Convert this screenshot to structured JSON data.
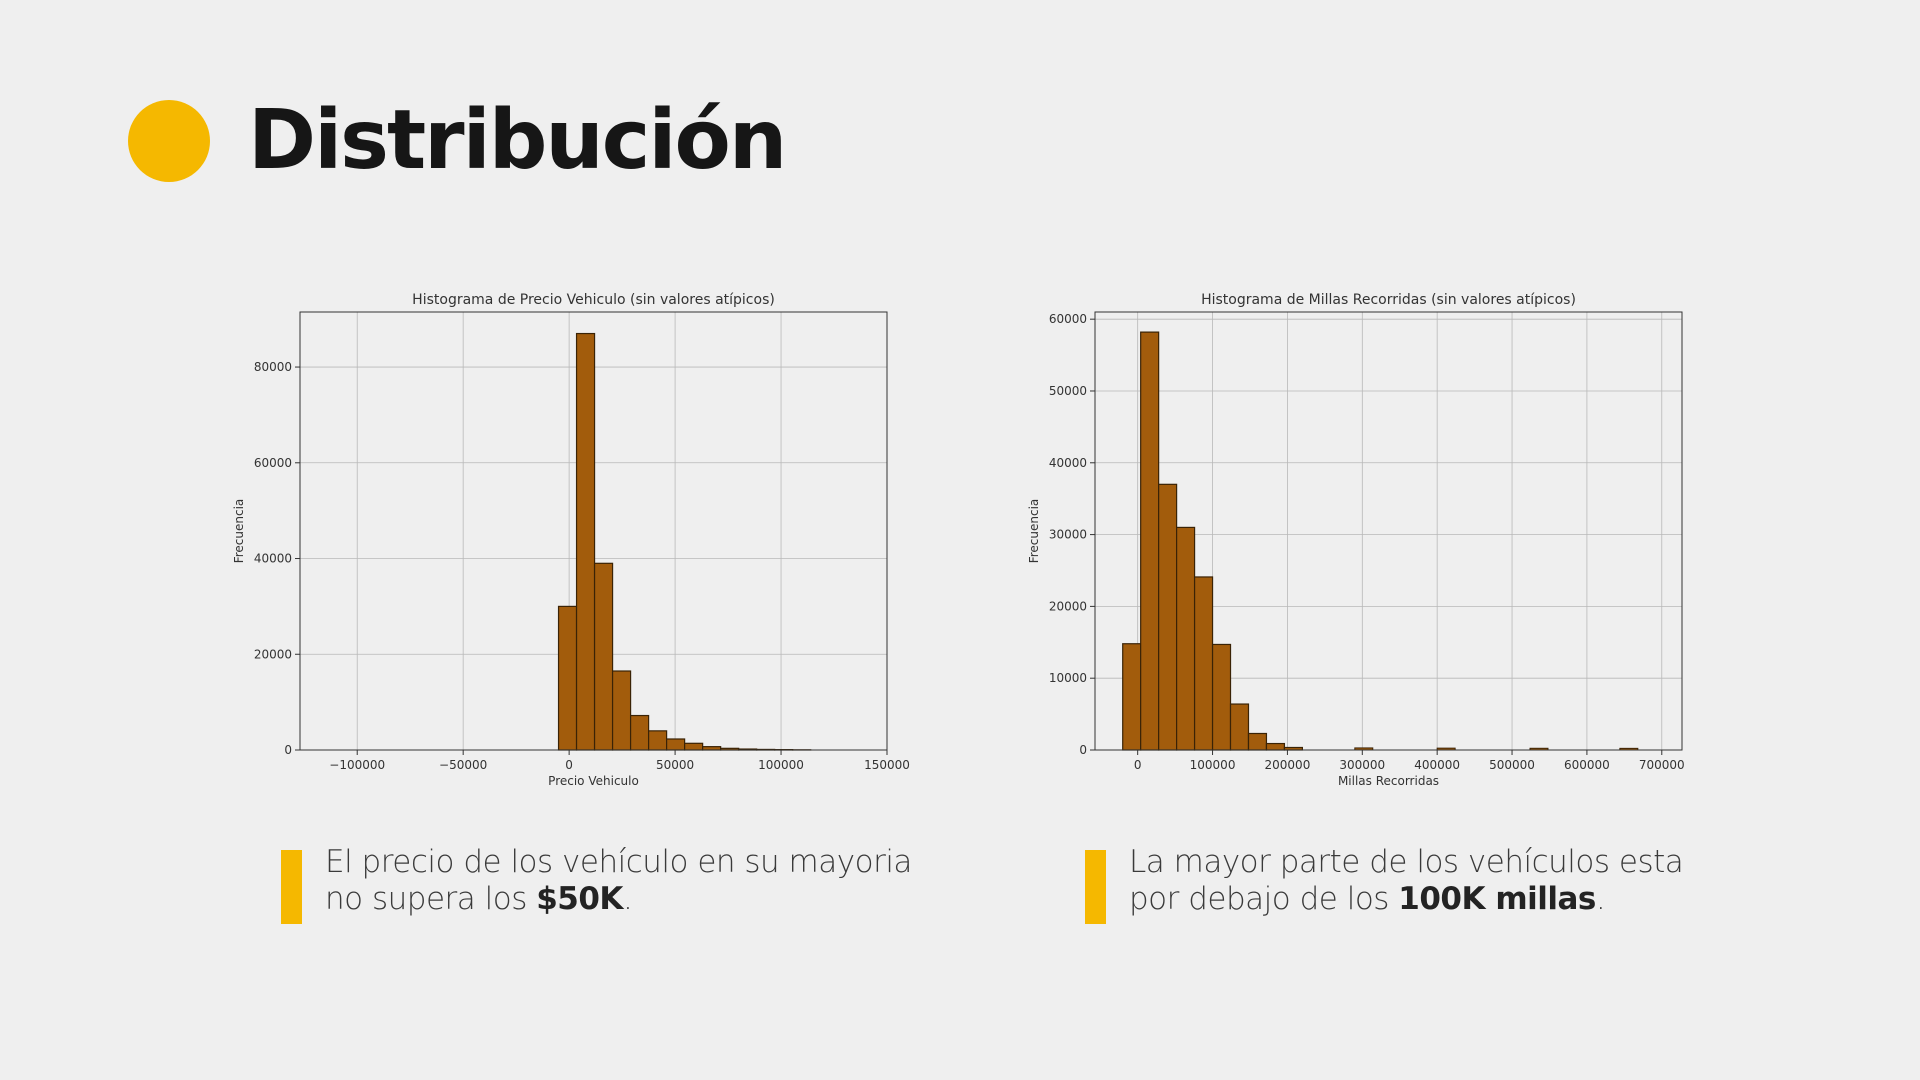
{
  "slide": {
    "title": "Distribución"
  },
  "captions": {
    "left": {
      "text": "El precio de los vehículo en su mayoria no supera los ",
      "bold": "$50K",
      "end": "."
    },
    "right": {
      "text": "La mayor parte de los vehículos esta por debajo de los ",
      "bold": "100K millas",
      "end": "."
    }
  },
  "colors": {
    "accent": "#f5b800",
    "bar_fill": "#a25c0c",
    "bar_edge": "#3a2306"
  },
  "chart_data": [
    {
      "type": "bar",
      "title": "Histograma de Precio Vehiculo (sin valores atípicos)",
      "xlabel": "Precio Vehiculo",
      "ylabel": "Frecuencia",
      "xlim": [
        -127000,
        150000
      ],
      "ylim": [
        0,
        91500
      ],
      "xticks": [
        -100000,
        -50000,
        0,
        50000,
        100000,
        150000
      ],
      "xtick_labels": [
        "−100000",
        "−50000",
        "0",
        "50000",
        "100000",
        "150000"
      ],
      "yticks": [
        0,
        20000,
        40000,
        60000,
        80000
      ],
      "ytick_labels": [
        "0",
        "20000",
        "40000",
        "60000",
        "80000"
      ],
      "grid": true,
      "bin_edges": [
        -5000,
        3500,
        12000,
        20500,
        29000,
        37500,
        46000,
        54500,
        63000,
        71500,
        80000,
        88500,
        97000,
        105500,
        114000
      ],
      "values": [
        30000,
        87000,
        39000,
        16500,
        7200,
        4000,
        2300,
        1400,
        700,
        350,
        200,
        120,
        80,
        40
      ]
    },
    {
      "type": "bar",
      "title": "Histograma de Millas Recorridas (sin valores atípicos)",
      "xlabel": "Millas Recorridas",
      "ylabel": "Frecuencia",
      "xlim": [
        -57000,
        727000
      ],
      "ylim": [
        0,
        61000
      ],
      "xticks": [
        0,
        100000,
        200000,
        300000,
        400000,
        500000,
        600000,
        700000
      ],
      "xtick_labels": [
        "0",
        "100000",
        "200000",
        "300000",
        "400000",
        "500000",
        "600000",
        "700000"
      ],
      "yticks": [
        0,
        10000,
        20000,
        30000,
        40000,
        50000,
        60000
      ],
      "ytick_labels": [
        "0",
        "10000",
        "20000",
        "30000",
        "40000",
        "50000",
        "60000"
      ],
      "grid": true,
      "bin_edges": [
        -20000,
        4000,
        28000,
        52000,
        76000,
        100000,
        124000,
        148000,
        172000,
        196000,
        220000
      ],
      "values": [
        14800,
        58200,
        37000,
        31000,
        24100,
        14700,
        6400,
        2300,
        900,
        350
      ],
      "outliers": [
        {
          "x": 290000,
          "w": 24000,
          "value": 150
        },
        {
          "x": 400000,
          "w": 24000,
          "value": 120
        },
        {
          "x": 524000,
          "w": 24000,
          "value": 100
        },
        {
          "x": 644000,
          "w": 24000,
          "value": 90
        }
      ]
    }
  ]
}
